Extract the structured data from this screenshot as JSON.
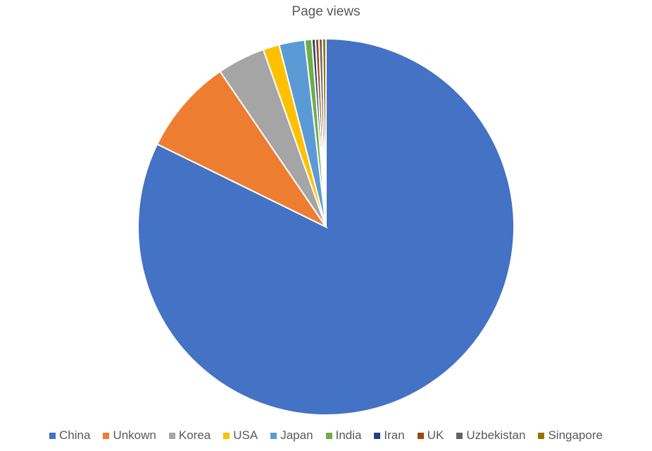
{
  "chart_data": {
    "type": "pie",
    "title": "Page views",
    "legend_position": "bottom",
    "categories": [
      "China",
      "Unkown",
      "Korea",
      "USA",
      "Japan",
      "India",
      "Iran",
      "UK",
      "Uzbekistan",
      "Singapore"
    ],
    "values": [
      82.0,
      8.2,
      4.1,
      1.4,
      2.2,
      0.6,
      0.3,
      0.3,
      0.3,
      0.3
    ],
    "colors": [
      "#4472C4",
      "#ED7D31",
      "#A5A5A5",
      "#FFC000",
      "#5B9BD5",
      "#70AD47",
      "#264478",
      "#9E480E",
      "#636363",
      "#997300"
    ],
    "start_angle": "12 o'clock",
    "direction": "clockwise"
  }
}
